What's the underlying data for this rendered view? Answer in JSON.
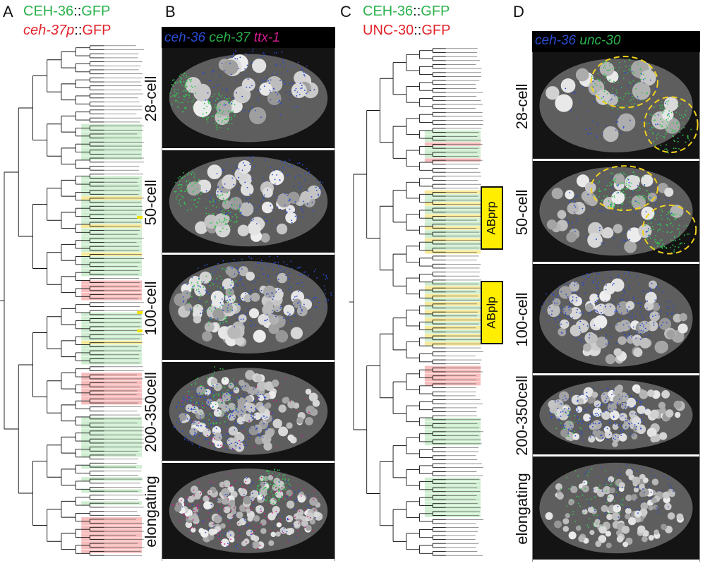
{
  "panels": {
    "A": {
      "letter": "A",
      "legend": [
        {
          "prefix": "CEH-36",
          "sep": "::",
          "suffix": "GFP",
          "color": "#2bb24c",
          "italic": false
        },
        {
          "prefix": "ceh-37p",
          "sep": "::",
          "suffix": "GFP",
          "color": "#e3232b",
          "italic": true
        }
      ]
    },
    "B": {
      "letter": "B",
      "header": [
        {
          "text": "ceh-36",
          "color": "#2b4bd1"
        },
        {
          "text": "ceh-37",
          "color": "#2bb24c"
        },
        {
          "text": "ttx-1",
          "color": "#d21b8c"
        }
      ],
      "stages": [
        "28-cell",
        "50-cell",
        "100-cell",
        "200-350cell",
        "elongating"
      ]
    },
    "C": {
      "letter": "C",
      "legend": [
        {
          "prefix": "CEH-36",
          "sep": "::",
          "suffix": "GFP",
          "color": "#2bb24c"
        },
        {
          "prefix": "UNC-30",
          "sep": "::",
          "suffix": "GFP",
          "color": "#e3232b"
        }
      ],
      "boxes": [
        "ABprp",
        "ABplp"
      ]
    },
    "D": {
      "letter": "D",
      "header": [
        {
          "text": "ceh-36",
          "color": "#2b4bd1"
        },
        {
          "text": "unc-30",
          "color": "#2bb24c"
        }
      ],
      "stages": [
        "28-cell",
        "50-cell",
        "100-cell",
        "200-350cell",
        "elongating"
      ]
    }
  }
}
